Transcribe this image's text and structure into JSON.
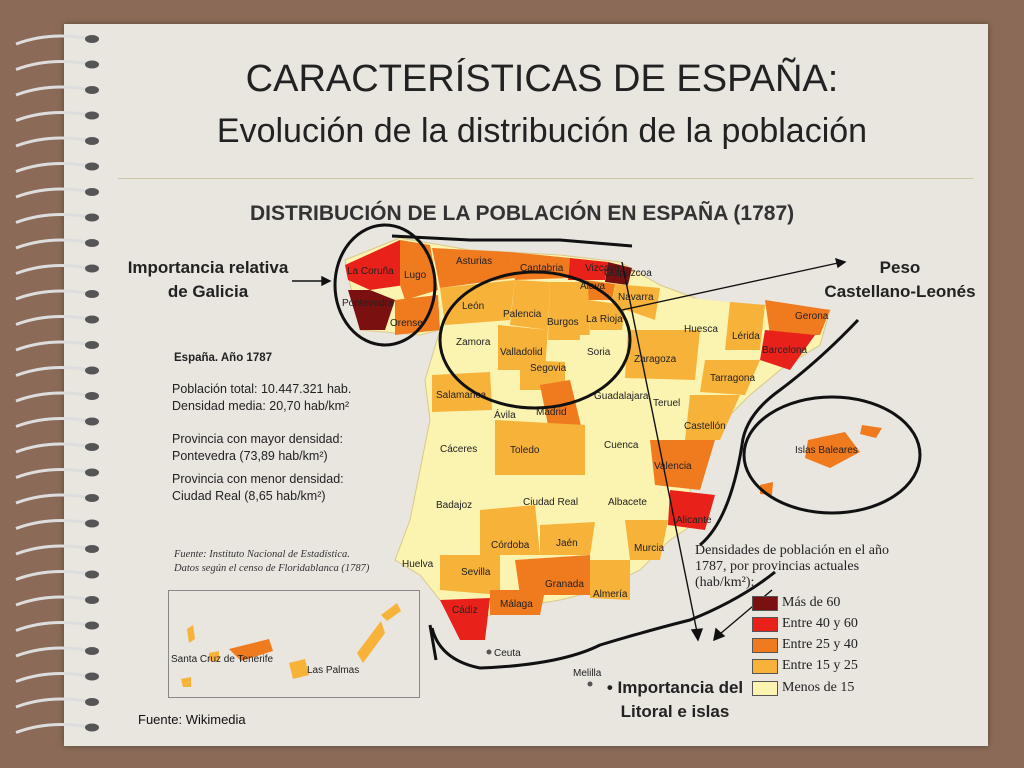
{
  "slide": {
    "title": "CARACTERÍSTICAS DE ESPAÑA:",
    "subtitle": "Evolución de la distribución de la población",
    "source": "Fuente: Wikimedia"
  },
  "map": {
    "title": "DISTRIBUCIÓN DE LA POBLACIÓN EN ESPAÑA (1787)",
    "year_label": "España. Año 1787",
    "stats": [
      "Población total: 10.447.321 hab.",
      "Densidad media: 20,70 hab/km²",
      "Provincia con mayor densidad:",
      "Pontevedra (73,89 hab/km²)",
      "Provincia con menor densidad:",
      "Ciudad Real (8,65 hab/km²)"
    ],
    "source_note": [
      "Fuente: Instituto Nacional de Estadística.",
      "Datos según el censo de Floridablanca (1787)"
    ],
    "legend_title": "Densidades de población en el año 1787, por provincias actuales (hab/km²):",
    "legend": [
      {
        "label": "Más de 60",
        "color": "#7a1010"
      },
      {
        "label": "Entre 40 y 60",
        "color": "#e8221a"
      },
      {
        "label": "Entre 25 y 40",
        "color": "#f07a1e"
      },
      {
        "label": "Entre 15 y 25",
        "color": "#f7b23a"
      },
      {
        "label": "Menos de 15",
        "color": "#fbf3b0"
      }
    ],
    "provinces": [
      "La Coruña",
      "Lugo",
      "Pontevedra",
      "Orense",
      "Asturias",
      "Cantabria",
      "Vizcaya",
      "Guipúzcoa",
      "Álava",
      "Navarra",
      "León",
      "Palencia",
      "Burgos",
      "La Rioja",
      "Huesca",
      "Lérida",
      "Gerona",
      "Barcelona",
      "Zamora",
      "Valladolid",
      "Soria",
      "Zaragoza",
      "Tarragona",
      "Segovia",
      "Salamanca",
      "Ávila",
      "Madrid",
      "Guadalajara",
      "Teruel",
      "Castellón",
      "Cáceres",
      "Toledo",
      "Cuenca",
      "Valencia",
      "Badajoz",
      "Ciudad Real",
      "Albacete",
      "Alicante",
      "Córdoba",
      "Jaén",
      "Murcia",
      "Huelva",
      "Sevilla",
      "Granada",
      "Almería",
      "Cádiz",
      "Málaga",
      "Ceuta",
      "Melilla",
      "Islas Baleares",
      "Santa Cruz de Tenerife",
      "Las Palmas"
    ]
  },
  "annotations": {
    "galicia": [
      "Importancia relativa",
      "de Galicia"
    ],
    "castellano": [
      "Peso",
      "Castellano-Leonés"
    ],
    "litoral": [
      "Importancia del",
      "Litoral e islas"
    ]
  }
}
